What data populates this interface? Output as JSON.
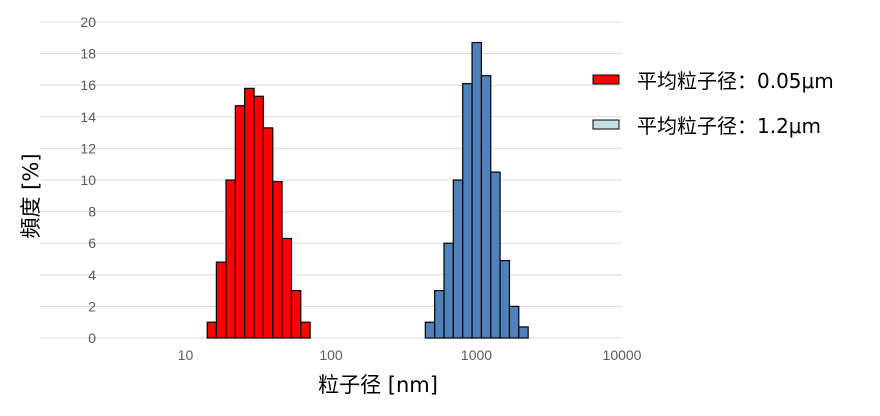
{
  "chart_data": {
    "type": "bar",
    "xlabel": "粒子径 [nm]",
    "ylabel": "頻度 [%]",
    "x_scale": "log",
    "xlim": [
      1,
      10000
    ],
    "ylim": [
      0,
      20
    ],
    "x_ticks": [
      "10",
      "100",
      "1000",
      "10000"
    ],
    "y_ticks": [
      "0",
      "2",
      "4",
      "6",
      "8",
      "10",
      "12",
      "14",
      "16",
      "18",
      "20"
    ],
    "grid": true,
    "legend_position": "right",
    "series": [
      {
        "name": "平均粒子径：0.05μm",
        "color": "#ff0000",
        "bins": [
          {
            "from": 14.1,
            "to": 16.3,
            "value": 1.0
          },
          {
            "from": 16.3,
            "to": 19.0,
            "value": 4.8
          },
          {
            "from": 19.0,
            "to": 22.0,
            "value": 10.0
          },
          {
            "from": 22.0,
            "to": 25.5,
            "value": 14.7
          },
          {
            "from": 25.5,
            "to": 29.6,
            "value": 15.8
          },
          {
            "from": 29.6,
            "to": 34.3,
            "value": 15.3
          },
          {
            "from": 34.3,
            "to": 39.8,
            "value": 13.3
          },
          {
            "from": 39.8,
            "to": 46.1,
            "value": 9.9
          },
          {
            "from": 46.1,
            "to": 53.5,
            "value": 6.3
          },
          {
            "from": 53.5,
            "to": 62.0,
            "value": 3.0
          },
          {
            "from": 62.0,
            "to": 71.9,
            "value": 1.0
          }
        ]
      },
      {
        "name": "平均粒子径：1.2μm",
        "color": "#4f81bd",
        "legend_color": "#c6e0e6",
        "bins": [
          {
            "from": 445,
            "to": 516,
            "value": 1.0
          },
          {
            "from": 516,
            "to": 598,
            "value": 3.0
          },
          {
            "from": 598,
            "to": 693,
            "value": 6.0
          },
          {
            "from": 693,
            "to": 804,
            "value": 10.0
          },
          {
            "from": 804,
            "to": 932,
            "value": 16.1
          },
          {
            "from": 932,
            "to": 1081,
            "value": 18.7
          },
          {
            "from": 1081,
            "to": 1253,
            "value": 16.6
          },
          {
            "from": 1253,
            "to": 1453,
            "value": 10.5
          },
          {
            "from": 1453,
            "to": 1685,
            "value": 4.9
          },
          {
            "from": 1685,
            "to": 1953,
            "value": 2.0
          },
          {
            "from": 1953,
            "to": 2265,
            "value": 0.7
          }
        ]
      }
    ]
  }
}
